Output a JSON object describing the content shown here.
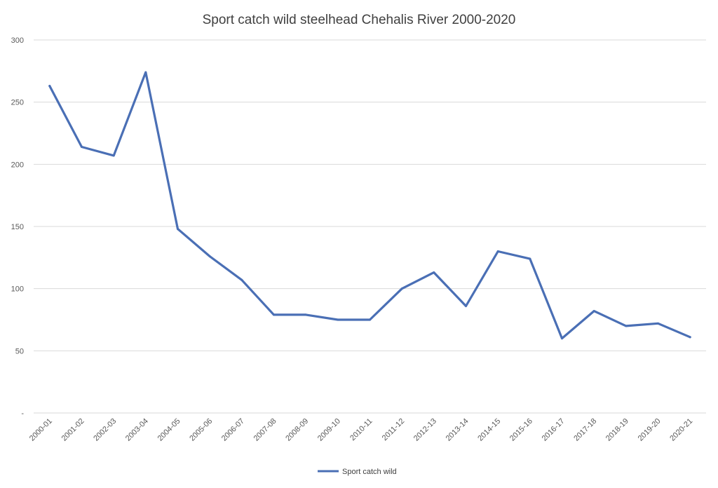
{
  "chart_data": {
    "type": "line",
    "title": "Sport catch wild steelhead Chehalis River 2000-2020",
    "xlabel": "",
    "ylabel": "",
    "categories": [
      "2000-01",
      "2001-02",
      "2002-03",
      "2003-04",
      "2004-05",
      "2005-06",
      "2006-07",
      "2007-08",
      "2008-09",
      "2009-10",
      "2010-11",
      "2011-12",
      "2012-13",
      "2013-14",
      "2014-15",
      "2015-16",
      "2016-17",
      "2017-18",
      "2018-19",
      "2019-20",
      "2020-21"
    ],
    "series": [
      {
        "name": "Sport catch wild",
        "color": "#4a6fb5",
        "values": [
          263,
          214,
          207,
          274,
          148,
          126,
          107,
          79,
          79,
          75,
          75,
          100,
          113,
          86,
          130,
          124,
          60,
          82,
          70,
          72,
          61
        ]
      }
    ],
    "ylim": [
      0,
      300
    ],
    "yticks": [
      0,
      50,
      100,
      150,
      200,
      250,
      300
    ],
    "ytick_labels": [
      "-",
      "50",
      "100",
      "150",
      "200",
      "250",
      "300"
    ],
    "grid": true,
    "legend": "bottom-center"
  }
}
